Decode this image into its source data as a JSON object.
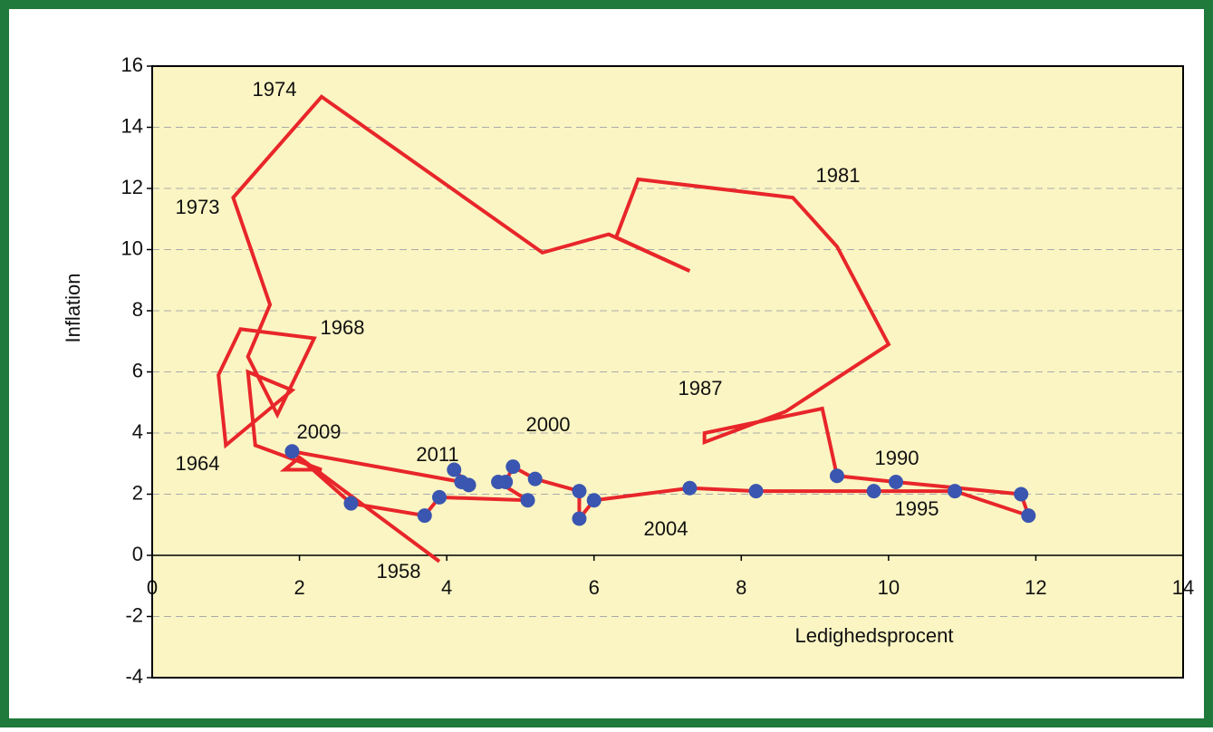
{
  "chart_data": {
    "type": "line",
    "x_label": "Ledighedsprocent",
    "y_label": "Inflation",
    "xlim": [
      0,
      14
    ],
    "xticks": [
      0,
      2,
      4,
      6,
      8,
      10,
      12,
      14
    ],
    "ylim": [
      -4,
      16
    ],
    "yticks": [
      -4,
      -2,
      0,
      2,
      4,
      6,
      8,
      10,
      12,
      14,
      16
    ],
    "grid": true,
    "series": [
      {
        "style": "line",
        "color": "#e8262a",
        "x": [
          3.9,
          2.0,
          1.8,
          2.3,
          1.4,
          1.3,
          1.9,
          1.0,
          0.9,
          1.2,
          2.2,
          1.7,
          1.3,
          1.6,
          1.1,
          2.3,
          5.3,
          6.2,
          7.3,
          6.3,
          6.6,
          8.7,
          9.3,
          10.0,
          8.6,
          7.5,
          7.5,
          9.1,
          9.3,
          10.1,
          11.8,
          11.9,
          10.9,
          9.8,
          8.2,
          7.3,
          6.0,
          5.8,
          5.8,
          5.2,
          4.9,
          4.8,
          4.7,
          5.1,
          3.9,
          3.7,
          2.7,
          1.9,
          4.2,
          4.3,
          4.1
        ],
        "values": [
          -0.2,
          3.2,
          2.8,
          2.8,
          3.6,
          6.0,
          5.4,
          3.6,
          5.9,
          7.4,
          7.1,
          4.6,
          6.5,
          8.2,
          11.7,
          15.0,
          9.9,
          10.5,
          9.3,
          10.4,
          12.3,
          11.7,
          10.1,
          6.9,
          4.7,
          3.7,
          4.0,
          4.8,
          2.6,
          2.4,
          2.0,
          1.3,
          2.1,
          2.1,
          2.1,
          2.2,
          1.8,
          1.2,
          2.1,
          2.5,
          2.9,
          2.4,
          2.4,
          1.8,
          1.9,
          1.3,
          1.7,
          3.4,
          2.4,
          2.3,
          2.8
        ]
      },
      {
        "style": "markers",
        "color": "#3a56b0",
        "x": [
          9.3,
          10.1,
          11.8,
          11.9,
          10.9,
          9.8,
          8.2,
          7.3,
          6.0,
          5.8,
          5.8,
          5.2,
          4.9,
          4.8,
          4.7,
          5.1,
          3.9,
          3.7,
          2.7,
          1.9,
          4.2,
          4.3,
          4.1
        ],
        "values": [
          2.6,
          2.4,
          2.0,
          1.3,
          2.1,
          2.1,
          2.1,
          2.2,
          1.8,
          1.2,
          2.1,
          2.5,
          2.9,
          2.4,
          2.4,
          1.8,
          1.9,
          1.3,
          1.7,
          3.4,
          2.4,
          2.3,
          2.8
        ]
      }
    ],
    "annotations": [
      "1974",
      "1973",
      "1981",
      "1968",
      "1964",
      "2009",
      "2011",
      "2000",
      "1987",
      "1990",
      "1995",
      "2004",
      "1958"
    ]
  }
}
